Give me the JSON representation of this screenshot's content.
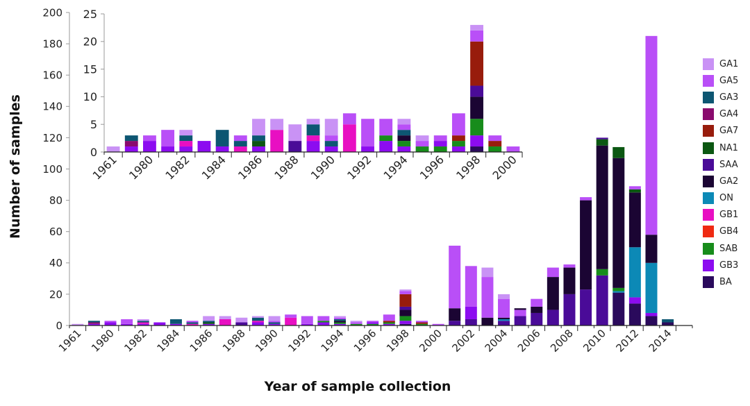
{
  "chart_data": {
    "type": "bar",
    "stacked": true,
    "ylabel": "Number of samples",
    "xlabel": "Year of sample collection",
    "ylim": [
      0,
      200
    ],
    "yticks": [
      0,
      20,
      40,
      60,
      80,
      100,
      120,
      140,
      160,
      180,
      200
    ],
    "categories": [
      "1961",
      "1979",
      "1980",
      "1981",
      "1982",
      "1983",
      "1984",
      "1985",
      "1986",
      "1987",
      "1988",
      "1989",
      "1990",
      "1991",
      "1992",
      "1993",
      "1994",
      "1995",
      "1996",
      "1997",
      "1998",
      "1999",
      "2000",
      "2001",
      "2002",
      "2003",
      "2004",
      "2005",
      "2006",
      "2007",
      "2008",
      "2009",
      "2010",
      "2011",
      "2012",
      "2013",
      "2014"
    ],
    "tick_labels": [
      "1961",
      "1980",
      "1982",
      "1984",
      "1986",
      "1988",
      "1990",
      "1992",
      "1994",
      "1996",
      "1998",
      "2000",
      "2002",
      "2004",
      "2006",
      "2008",
      "2010",
      "2012",
      "2014"
    ],
    "legend": [
      "GA1",
      "GA5",
      "GA3",
      "GA4",
      "GA7",
      "NA1",
      "SAA",
      "GA2",
      "ON",
      "GB1",
      "GB4",
      "SAB",
      "GB3",
      "BA"
    ],
    "legend_position": "right",
    "colors": {
      "GA1": "#c992f5",
      "GA5": "#b94ff7",
      "GA3": "#0d5672",
      "GA4": "#8a0b6e",
      "GA7": "#981c0c",
      "NA1": "#0b5712",
      "SAA": "#4a0b98",
      "GA2": "#1b0533",
      "ON": "#0c89b6",
      "GB1": "#e80fc2",
      "GB4": "#ef2a12",
      "SAB": "#178c1b",
      "GB3": "#8c0cf0",
      "BA": "#2a0a5c"
    },
    "stacks": [
      [
        [
          "GA1",
          1
        ]
      ],
      [
        [
          "GB3",
          1
        ],
        [
          "GA4",
          1
        ],
        [
          "GA3",
          1
        ]
      ],
      [
        [
          "GB3",
          2
        ],
        [
          "GA5",
          1
        ]
      ],
      [
        [
          "GB3",
          1
        ],
        [
          "GA5",
          3
        ]
      ],
      [
        [
          "GB3",
          1
        ],
        [
          "GB1",
          1
        ],
        [
          "GA3",
          1
        ],
        [
          "GA1",
          1
        ]
      ],
      [
        [
          "GB3",
          2
        ]
      ],
      [
        [
          "GB3",
          1
        ],
        [
          "GA3",
          3
        ]
      ],
      [
        [
          "GB1",
          1
        ],
        [
          "GA3",
          1
        ],
        [
          "GA5",
          1
        ]
      ],
      [
        [
          "GB3",
          1
        ],
        [
          "NA1",
          1
        ],
        [
          "GA3",
          1
        ],
        [
          "GA1",
          3
        ]
      ],
      [
        [
          "GB1",
          4
        ],
        [
          "GA1",
          2
        ]
      ],
      [
        [
          "SAA",
          2
        ],
        [
          "GA1",
          3
        ]
      ],
      [
        [
          "GB3",
          2
        ],
        [
          "GB1",
          1
        ],
        [
          "GA3",
          2
        ],
        [
          "GA1",
          1
        ]
      ],
      [
        [
          "GB3",
          1
        ],
        [
          "GA3",
          1
        ],
        [
          "GA5",
          1
        ],
        [
          "GA1",
          3
        ]
      ],
      [
        [
          "GB1",
          5
        ],
        [
          "GA5",
          2
        ]
      ],
      [
        [
          "GB3",
          1
        ],
        [
          "GA5",
          5
        ]
      ],
      [
        [
          "GB3",
          2
        ],
        [
          "SAB",
          1
        ],
        [
          "GA5",
          3
        ]
      ],
      [
        [
          "GB3",
          1
        ],
        [
          "SAB",
          1
        ],
        [
          "GA2",
          1
        ],
        [
          "GA3",
          1
        ],
        [
          "GA5",
          1
        ],
        [
          "GA1",
          1
        ]
      ],
      [
        [
          "SAB",
          1
        ],
        [
          "GA5",
          1
        ],
        [
          "GA1",
          1
        ]
      ],
      [
        [
          "SAB",
          1
        ],
        [
          "GB3",
          1
        ],
        [
          "GA5",
          1
        ]
      ],
      [
        [
          "GB3",
          1
        ],
        [
          "SAB",
          1
        ],
        [
          "GA7",
          1
        ],
        [
          "GA5",
          4
        ]
      ],
      [
        [
          "BA",
          1
        ],
        [
          "GB3",
          2
        ],
        [
          "SAB",
          3
        ],
        [
          "GA2",
          4
        ],
        [
          "SAA",
          2
        ],
        [
          "GA7",
          8
        ],
        [
          "GA5",
          2
        ],
        [
          "GA1",
          1
        ]
      ],
      [
        [
          "SAB",
          1
        ],
        [
          "GA7",
          1
        ],
        [
          "GA5",
          1
        ]
      ],
      [
        [
          "GA5",
          1
        ]
      ],
      [
        [
          "SAA",
          3
        ],
        [
          "GA2",
          8
        ],
        [
          "GA5",
          40
        ]
      ],
      [
        [
          "SAA",
          4
        ],
        [
          "GB3",
          8
        ],
        [
          "GA5",
          26
        ]
      ],
      [
        [
          "GA2",
          5
        ],
        [
          "GA5",
          26
        ],
        [
          "GA1",
          6
        ]
      ],
      [
        [
          "SAA",
          3
        ],
        [
          "ON",
          1
        ],
        [
          "GA2",
          1
        ],
        [
          "GA5",
          12
        ],
        [
          "GA1",
          3
        ]
      ],
      [
        [
          "SAA",
          6
        ],
        [
          "GA5",
          4
        ],
        [
          "GA2",
          1
        ]
      ],
      [
        [
          "SAA",
          8
        ],
        [
          "GA2",
          4
        ],
        [
          "GA5",
          5
        ]
      ],
      [
        [
          "SAA",
          10
        ],
        [
          "GA2",
          21
        ],
        [
          "GA5",
          6
        ]
      ],
      [
        [
          "SAA",
          20
        ],
        [
          "GA2",
          17
        ],
        [
          "GA5",
          2
        ]
      ],
      [
        [
          "SAA",
          23
        ],
        [
          "GA2",
          57
        ],
        [
          "GA5",
          2
        ]
      ],
      [
        [
          "SAA",
          32
        ],
        [
          "SAB",
          4
        ],
        [
          "GA2",
          79
        ],
        [
          "NA1",
          4
        ],
        [
          "SAA",
          1
        ]
      ],
      [
        [
          "BA",
          21
        ],
        [
          "ON",
          1
        ],
        [
          "SAB",
          2
        ],
        [
          "GA2",
          83
        ],
        [
          "NA1",
          7
        ]
      ],
      [
        [
          "BA",
          14
        ],
        [
          "GB3",
          4
        ],
        [
          "ON",
          32
        ],
        [
          "GA2",
          35
        ],
        [
          "NA1",
          2
        ],
        [
          "GA5",
          2
        ]
      ],
      [
        [
          "BA",
          6
        ],
        [
          "GB3",
          2
        ],
        [
          "ON",
          32
        ],
        [
          "GA2",
          18
        ],
        [
          "GA5",
          127
        ]
      ],
      [
        [
          "BA",
          2
        ],
        [
          "GA3",
          2
        ]
      ]
    ],
    "inset": {
      "type": "bar",
      "stacked": true,
      "ylim": [
        0,
        25
      ],
      "yticks": [
        0,
        5,
        10,
        15,
        20,
        25
      ],
      "range": [
        "1961",
        "2000"
      ],
      "tick_labels": [
        "1961",
        "1980",
        "1982",
        "1984",
        "1986",
        "1988",
        "1990",
        "1992",
        "1994",
        "1996",
        "1998",
        "2000"
      ]
    }
  }
}
